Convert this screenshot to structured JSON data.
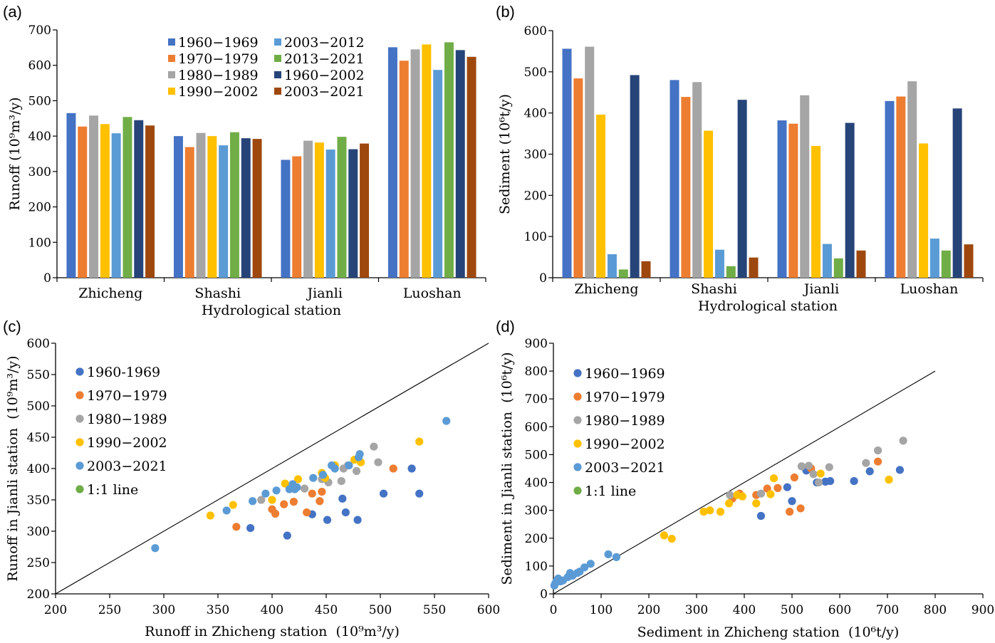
{
  "panels": {
    "a": "(a)",
    "b": "(b)",
    "c": "(c)",
    "d": "(d)"
  },
  "chart_data": [
    {
      "type": "bar",
      "panel": "(a)",
      "xlabel": "Hydrological station",
      "ylabel": "Runoff (10⁹m³/y)",
      "ylim": [
        0,
        700
      ],
      "yticks": [
        0,
        100,
        200,
        300,
        400,
        500,
        600,
        700
      ],
      "categories": [
        "Zhicheng",
        "Shashi",
        "Jianli",
        "Luoshan"
      ],
      "legend_position": "top-center",
      "series": [
        {
          "name": "1960−1969",
          "color": "#4472C4",
          "values": [
            465,
            400,
            333,
            651
          ]
        },
        {
          "name": "1970−1979",
          "color": "#ED7D31",
          "values": [
            427,
            369,
            343,
            613
          ]
        },
        {
          "name": "1980−1989",
          "color": "#A5A5A5",
          "values": [
            458,
            409,
            387,
            645
          ]
        },
        {
          "name": "1990−2002",
          "color": "#FFC000",
          "values": [
            434,
            400,
            382,
            659
          ]
        },
        {
          "name": "2003−2012",
          "color": "#5B9BD5",
          "values": [
            408,
            374,
            362,
            587
          ]
        },
        {
          "name": "2013−2021",
          "color": "#70AD47",
          "values": [
            454,
            411,
            398,
            665
          ]
        },
        {
          "name": "1960−2002",
          "color": "#264478",
          "values": [
            445,
            394,
            363,
            643
          ]
        },
        {
          "name": "2003−2021",
          "color": "#9E480E",
          "values": [
            430,
            392,
            379,
            624
          ]
        }
      ]
    },
    {
      "type": "bar",
      "panel": "(b)",
      "xlabel": "Hydrological station",
      "ylabel": "Sediment (10⁶t/y)",
      "ylim": [
        0,
        600
      ],
      "yticks": [
        0,
        100,
        200,
        300,
        400,
        500,
        600
      ],
      "categories": [
        "Zhicheng",
        "Shashi",
        "Jianli",
        "Luoshan"
      ],
      "series": [
        {
          "name": "1960−1969",
          "color": "#4472C4",
          "values": [
            556,
            480,
            382,
            429
          ]
        },
        {
          "name": "1970−1979",
          "color": "#ED7D31",
          "values": [
            484,
            439,
            374,
            440
          ]
        },
        {
          "name": "1980−1989",
          "color": "#A5A5A5",
          "values": [
            561,
            475,
            443,
            477
          ]
        },
        {
          "name": "1990−2002",
          "color": "#FFC000",
          "values": [
            396,
            357,
            320,
            326
          ]
        },
        {
          "name": "2003−2012",
          "color": "#5B9BD5",
          "values": [
            57,
            68,
            82,
            95
          ]
        },
        {
          "name": "2013−2021",
          "color": "#70AD47",
          "values": [
            20,
            28,
            47,
            66
          ]
        },
        {
          "name": "1960−2002",
          "color": "#264478",
          "values": [
            492,
            432,
            376,
            411
          ]
        },
        {
          "name": "2003−2021",
          "color": "#9E480E",
          "values": [
            40,
            49,
            66,
            81
          ]
        }
      ]
    },
    {
      "type": "scatter",
      "panel": "(c)",
      "xlabel": "Runoff in Zhicheng station  (10⁹m³/y)",
      "ylabel": "Runoff in Jianli station  (10⁹m³/y)",
      "xlim": [
        200,
        600
      ],
      "ylim": [
        200,
        600
      ],
      "xticks": [
        200,
        250,
        300,
        350,
        400,
        450,
        500,
        550,
        600
      ],
      "yticks": [
        200,
        250,
        300,
        350,
        400,
        450,
        500,
        550,
        600
      ],
      "legend_position": "top-left",
      "line_label": "1:1 line",
      "line_color": "#70AD47",
      "series": [
        {
          "name": "1960-1969",
          "color": "#4472C4",
          "points": [
            [
              380,
              305
            ],
            [
              414,
              293
            ],
            [
              437,
              327
            ],
            [
              451,
              318
            ],
            [
              465,
              352
            ],
            [
              468,
              330
            ],
            [
              479,
              318
            ],
            [
              503,
              360
            ],
            [
              529,
              400
            ],
            [
              536,
              360
            ]
          ]
        },
        {
          "name": "1970−1979",
          "color": "#ED7D31",
          "points": [
            [
              367,
              307
            ],
            [
              400,
              335
            ],
            [
              403,
              328
            ],
            [
              411,
              343
            ],
            [
              420,
              347
            ],
            [
              432,
              330
            ],
            [
              437,
              360
            ],
            [
              444,
              348
            ],
            [
              446,
              363
            ],
            [
              512,
              400
            ]
          ]
        },
        {
          "name": "1980−1989",
          "color": "#A5A5A5",
          "points": [
            [
              390,
              350
            ],
            [
              430,
              368
            ],
            [
              446,
              383
            ],
            [
              452,
              378
            ],
            [
              464,
              380
            ],
            [
              466,
              400
            ],
            [
              470,
              405
            ],
            [
              478,
              396
            ],
            [
              494,
              435
            ],
            [
              498,
              410
            ]
          ]
        },
        {
          "name": "1990−2002",
          "color": "#FFC000",
          "points": [
            [
              343,
              325
            ],
            [
              364,
              342
            ],
            [
              400,
              350
            ],
            [
              412,
              376
            ],
            [
              419,
              372
            ],
            [
              424,
              383
            ],
            [
              446,
              393
            ],
            [
              449,
              385
            ],
            [
              458,
              405
            ],
            [
              476,
              414
            ],
            [
              482,
              410
            ],
            [
              536,
              443
            ]
          ]
        },
        {
          "name": "2003−2021",
          "color": "#5B9BD5",
          "points": [
            [
              292,
              273
            ],
            [
              358,
              333
            ],
            [
              382,
              348
            ],
            [
              394,
              360
            ],
            [
              404,
              365
            ],
            [
              416,
              367
            ],
            [
              419,
              375
            ],
            [
              421,
              367
            ],
            [
              423,
              370
            ],
            [
              438,
              385
            ],
            [
              447,
              390
            ],
            [
              455,
              405
            ],
            [
              458,
              400
            ],
            [
              471,
              405
            ],
            [
              480,
              418
            ],
            [
              481,
              423
            ],
            [
              561,
              476
            ]
          ]
        }
      ]
    },
    {
      "type": "scatter",
      "panel": "(d)",
      "xlabel": "Sediment in Zhicheng station  (10⁶t/y)",
      "ylabel": "Sediment in Jianli station  (10⁶t/y)",
      "xlim": [
        0,
        900
      ],
      "ylim": [
        0,
        900
      ],
      "xticks": [
        0,
        100,
        200,
        300,
        400,
        500,
        600,
        700,
        800,
        900
      ],
      "yticks": [
        0,
        100,
        200,
        300,
        400,
        500,
        600,
        700,
        800,
        900
      ],
      "legend_position": "top-left",
      "line_label": "1:1 line",
      "line_color": "#70AD47",
      "series": [
        {
          "name": "1960−1969",
          "color": "#4472C4",
          "points": [
            [
              435,
              280
            ],
            [
              490,
              383
            ],
            [
              500,
              333
            ],
            [
              530,
              443
            ],
            [
              552,
              400
            ],
            [
              570,
              403
            ],
            [
              580,
              405
            ],
            [
              630,
              405
            ],
            [
              663,
              440
            ],
            [
              726,
              445
            ]
          ]
        },
        {
          "name": "1970−1979",
          "color": "#ED7D31",
          "points": [
            [
              375,
              342
            ],
            [
              390,
              360
            ],
            [
              425,
              355
            ],
            [
              448,
              378
            ],
            [
              470,
              380
            ],
            [
              495,
              295
            ],
            [
              505,
              418
            ],
            [
              518,
              307
            ],
            [
              540,
              450
            ],
            [
              680,
              475
            ]
          ]
        },
        {
          "name": "1980−1989",
          "color": "#A5A5A5",
          "points": [
            [
              370,
              355
            ],
            [
              435,
              360
            ],
            [
              520,
              458
            ],
            [
              535,
              460
            ],
            [
              545,
              430
            ],
            [
              556,
              400
            ],
            [
              578,
              455
            ],
            [
              655,
              470
            ],
            [
              680,
              515
            ],
            [
              733,
              550
            ]
          ]
        },
        {
          "name": "1990−2002",
          "color": "#FFC000",
          "points": [
            [
              232,
              210
            ],
            [
              248,
              198
            ],
            [
              315,
              295
            ],
            [
              328,
              300
            ],
            [
              350,
              295
            ],
            [
              368,
              325
            ],
            [
              385,
              355
            ],
            [
              396,
              350
            ],
            [
              425,
              325
            ],
            [
              455,
              358
            ],
            [
              462,
              415
            ],
            [
              560,
              432
            ],
            [
              703,
              410
            ]
          ]
        },
        {
          "name": "2003−2021",
          "color": "#5B9BD5",
          "points": [
            [
              2,
              30
            ],
            [
              4,
              38
            ],
            [
              6,
              42
            ],
            [
              8,
              50
            ],
            [
              10,
              55
            ],
            [
              15,
              45
            ],
            [
              20,
              48
            ],
            [
              30,
              60
            ],
            [
              35,
              75
            ],
            [
              40,
              65
            ],
            [
              50,
              75
            ],
            [
              55,
              80
            ],
            [
              65,
              95
            ],
            [
              78,
              108
            ],
            [
              115,
              142
            ],
            [
              132,
              132
            ]
          ]
        }
      ]
    }
  ]
}
